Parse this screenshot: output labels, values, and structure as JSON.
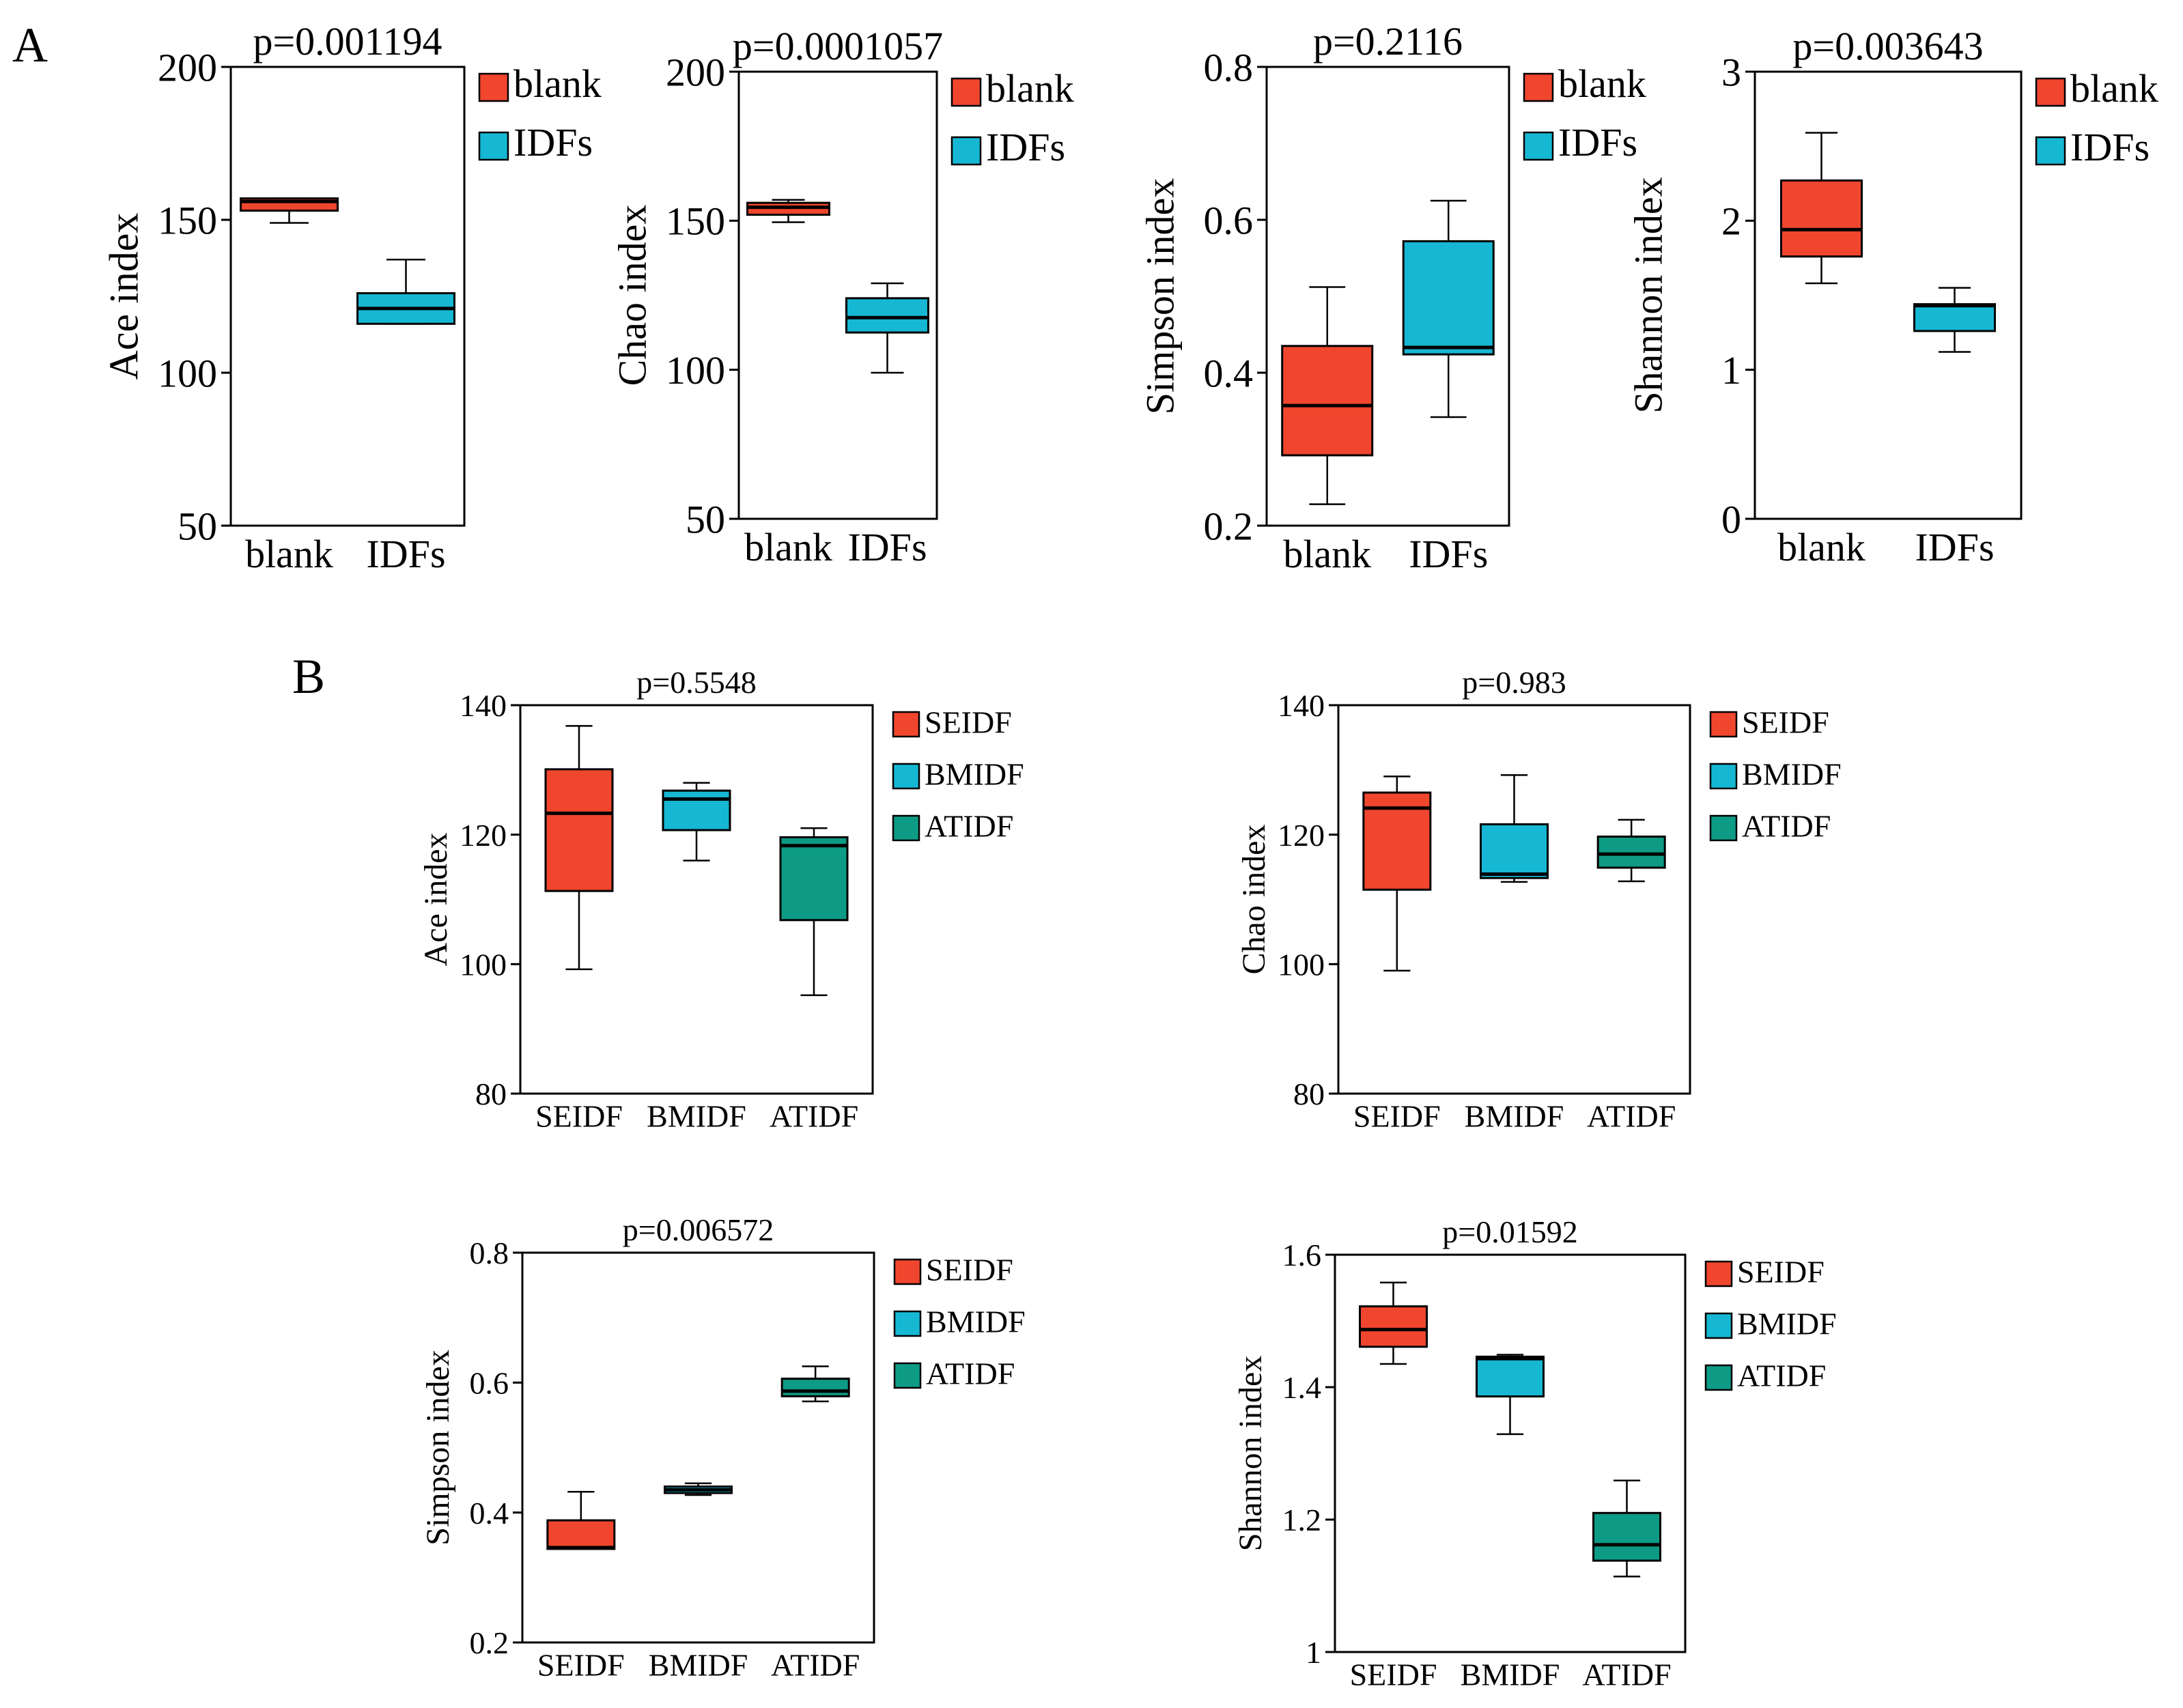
{
  "panel_labels": [
    "A",
    "B"
  ],
  "colors": {
    "blank": "#F0462E",
    "IDFs": "#16B7D3",
    "SEIDF": "#F0462E",
    "BMIDF": "#16B7D3",
    "ATIDF": "#0E9B85",
    "stroke": "#000000"
  },
  "chart_data": [
    {
      "type": "box",
      "panel": "A",
      "title": "p=0.001194",
      "ylabel": "Ace index",
      "ylim": [
        50,
        200
      ],
      "yticks": [
        "50",
        "100",
        "150",
        "200"
      ],
      "categories": [
        "blank",
        "IDFs"
      ],
      "legend": [
        "blank",
        "IDFs"
      ],
      "legend_position": "right",
      "boxes": [
        {
          "min": 149,
          "q1": 153,
          "median": 156,
          "q3": 157,
          "max": 157
        },
        {
          "min": 116,
          "q1": 116,
          "median": 121,
          "q3": 126,
          "max": 137
        }
      ]
    },
    {
      "type": "box",
      "panel": "A",
      "title": "p=0.0001057",
      "ylabel": "Chao index",
      "ylim": [
        50,
        200
      ],
      "yticks": [
        "50",
        "100",
        "150",
        "200"
      ],
      "categories": [
        "blank",
        "IDFs"
      ],
      "legend": [
        "blank",
        "IDFs"
      ],
      "legend_position": "right",
      "boxes": [
        {
          "min": 149.5,
          "q1": 152,
          "median": 154.5,
          "q3": 156,
          "max": 157
        },
        {
          "min": 99,
          "q1": 112.5,
          "median": 117.5,
          "q3": 124,
          "max": 129
        }
      ]
    },
    {
      "type": "box",
      "panel": "A",
      "title": "p=0.2116",
      "ylabel": "Simpson index",
      "ylim": [
        0.2,
        0.8
      ],
      "yticks": [
        "0.2",
        "0.4",
        "0.6",
        "0.8"
      ],
      "categories": [
        "blank",
        "IDFs"
      ],
      "legend": [
        "blank",
        "IDFs"
      ],
      "legend_position": "right",
      "boxes": [
        {
          "min": 0.228,
          "q1": 0.292,
          "median": 0.357,
          "q3": 0.435,
          "max": 0.512
        },
        {
          "min": 0.342,
          "q1": 0.424,
          "median": 0.433,
          "q3": 0.572,
          "max": 0.625
        }
      ]
    },
    {
      "type": "box",
      "panel": "A",
      "title": "p=0.003643",
      "ylabel": "Shannon index",
      "ylim": [
        0,
        3
      ],
      "yticks": [
        "0",
        "1",
        "2",
        "3"
      ],
      "categories": [
        "blank",
        "IDFs"
      ],
      "legend": [
        "blank",
        "IDFs"
      ],
      "legend_position": "right",
      "boxes": [
        {
          "min": 1.58,
          "q1": 1.76,
          "median": 1.94,
          "q3": 2.27,
          "max": 2.59
        },
        {
          "min": 1.12,
          "q1": 1.26,
          "median": 1.43,
          "q3": 1.44,
          "max": 1.55
        }
      ]
    },
    {
      "type": "box",
      "panel": "B",
      "title": "p=0.5548",
      "ylabel": "Ace index",
      "ylim": [
        80,
        140
      ],
      "yticks": [
        "80",
        "100",
        "120",
        "140"
      ],
      "categories": [
        "SEIDF",
        "BMIDF",
        "ATIDF"
      ],
      "legend": [
        "SEIDF",
        "BMIDF",
        "ATIDF"
      ],
      "legend_position": "right",
      "boxes": [
        {
          "min": 99.2,
          "q1": 111.3,
          "median": 123.3,
          "q3": 130.1,
          "max": 136.8
        },
        {
          "min": 116.0,
          "q1": 120.7,
          "median": 125.5,
          "q3": 126.8,
          "max": 128.0
        },
        {
          "min": 95.2,
          "q1": 106.8,
          "median": 118.3,
          "q3": 119.6,
          "max": 121.0
        }
      ]
    },
    {
      "type": "box",
      "panel": "B",
      "title": "p=0.983",
      "ylabel": "Chao index",
      "ylim": [
        80,
        140
      ],
      "yticks": [
        "80",
        "100",
        "120",
        "140"
      ],
      "categories": [
        "SEIDF",
        "BMIDF",
        "ATIDF"
      ],
      "legend": [
        "SEIDF",
        "BMIDF",
        "ATIDF"
      ],
      "legend_position": "right",
      "boxes": [
        {
          "min": 99.0,
          "q1": 111.5,
          "median": 124.1,
          "q3": 126.5,
          "max": 129.0
        },
        {
          "min": 112.7,
          "q1": 113.3,
          "median": 113.9,
          "q3": 121.6,
          "max": 129.2
        },
        {
          "min": 112.8,
          "q1": 114.9,
          "median": 117.0,
          "q3": 119.7,
          "max": 122.3
        }
      ]
    },
    {
      "type": "box",
      "panel": "B",
      "title": "p=0.006572",
      "ylabel": "Simpson index",
      "ylim": [
        0.2,
        0.8
      ],
      "yticks": [
        "0.2",
        "0.4",
        "0.6",
        "0.8"
      ],
      "categories": [
        "SEIDF",
        "BMIDF",
        "ATIDF"
      ],
      "legend": [
        "SEIDF",
        "BMIDF",
        "ATIDF"
      ],
      "legend_position": "right",
      "boxes": [
        {
          "min": 0.344,
          "q1": 0.344,
          "median": 0.346,
          "q3": 0.388,
          "max": 0.432
        },
        {
          "min": 0.427,
          "q1": 0.43,
          "median": 0.435,
          "q3": 0.44,
          "max": 0.445
        },
        {
          "min": 0.571,
          "q1": 0.579,
          "median": 0.587,
          "q3": 0.606,
          "max": 0.625
        }
      ]
    },
    {
      "type": "box",
      "panel": "B",
      "title": "p=0.01592",
      "ylabel": "Shannon index",
      "ylim": [
        1,
        1.6
      ],
      "yticks": [
        "1",
        "1.2",
        "1.4",
        "1.6"
      ],
      "categories": [
        "SEIDF",
        "BMIDF",
        "ATIDF"
      ],
      "legend": [
        "SEIDF",
        "BMIDF",
        "ATIDF"
      ],
      "legend_position": "right",
      "boxes": [
        {
          "min": 1.435,
          "q1": 1.461,
          "median": 1.487,
          "q3": 1.522,
          "max": 1.558
        },
        {
          "min": 1.329,
          "q1": 1.386,
          "median": 1.443,
          "q3": 1.446,
          "max": 1.449
        },
        {
          "min": 1.114,
          "q1": 1.138,
          "median": 1.162,
          "q3": 1.21,
          "max": 1.259
        }
      ]
    }
  ]
}
